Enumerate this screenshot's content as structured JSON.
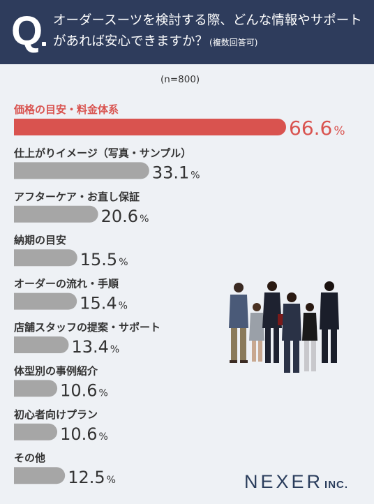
{
  "header": {
    "q_mark": "Q",
    "line1": "オーダースーツを検討する際、どんな情報やサポート",
    "line2": "があれば安心できますか？",
    "note": "(複数回答可)"
  },
  "sample": "(n=800)",
  "chart_data": {
    "type": "bar",
    "orientation": "horizontal",
    "categories": [
      "価格の目安・料金体系",
      "仕上がりイメージ（写真・サンプル）",
      "アフターケア・お直し保証",
      "納期の目安",
      "オーダーの流れ・手順",
      "店舗スタッフの提案・サポート",
      "体型別の事例紹介",
      "初心者向けプラン",
      "その他"
    ],
    "values": [
      66.6,
      33.1,
      20.6,
      15.5,
      15.4,
      13.4,
      10.6,
      10.6,
      12.5
    ],
    "value_labels": [
      "66.6",
      "33.1",
      "20.6",
      "15.5",
      "15.4",
      "13.4",
      "10.6",
      "10.6",
      "12.5"
    ],
    "unit": "%",
    "highlight_color": "#d9534f",
    "bar_color": "#a6a6a6"
  },
  "logo": {
    "main": "NEXER",
    "sub": "INC."
  },
  "colors": {
    "header_bg": "#2e3c5c",
    "page_bg": "#eef1f5",
    "logo": "#2a3d5c"
  }
}
